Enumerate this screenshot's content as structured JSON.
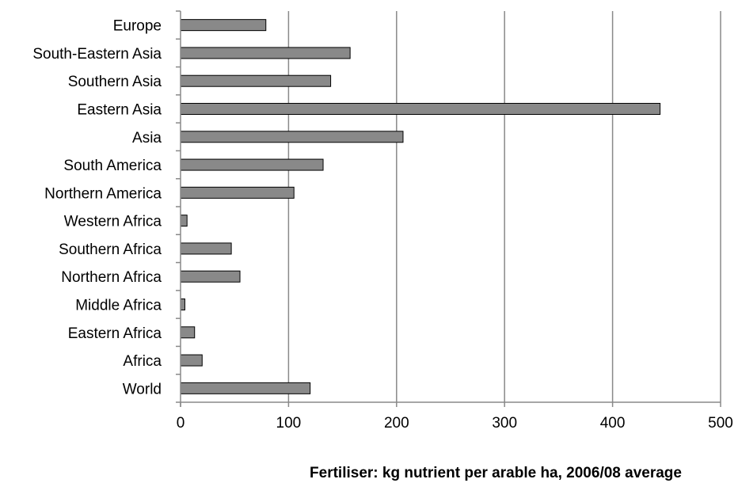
{
  "chart_data": {
    "type": "bar",
    "orientation": "horizontal",
    "title": "",
    "xlabel": "Fertiliser: kg nutrient per arable ha, 2006/08 average",
    "ylabel": "",
    "xlim": [
      0,
      500
    ],
    "xticks": [
      0,
      100,
      200,
      300,
      400,
      500
    ],
    "grid": true,
    "legend": "none",
    "categories": [
      "Europe",
      "South-Eastern Asia",
      "Southern Asia",
      "Eastern Asia",
      "Asia",
      "South America",
      "Northern America",
      "Western Africa",
      "Southern Africa",
      "Northern Africa",
      "Middle Africa",
      "Eastern Africa",
      "Africa",
      "World"
    ],
    "values": [
      79,
      157,
      139,
      444,
      206,
      132,
      105,
      6,
      47,
      55,
      4,
      13,
      20,
      120
    ],
    "bar_color": "#898989",
    "bar_edge_color": "#000000",
    "grid_color": "#898989"
  }
}
